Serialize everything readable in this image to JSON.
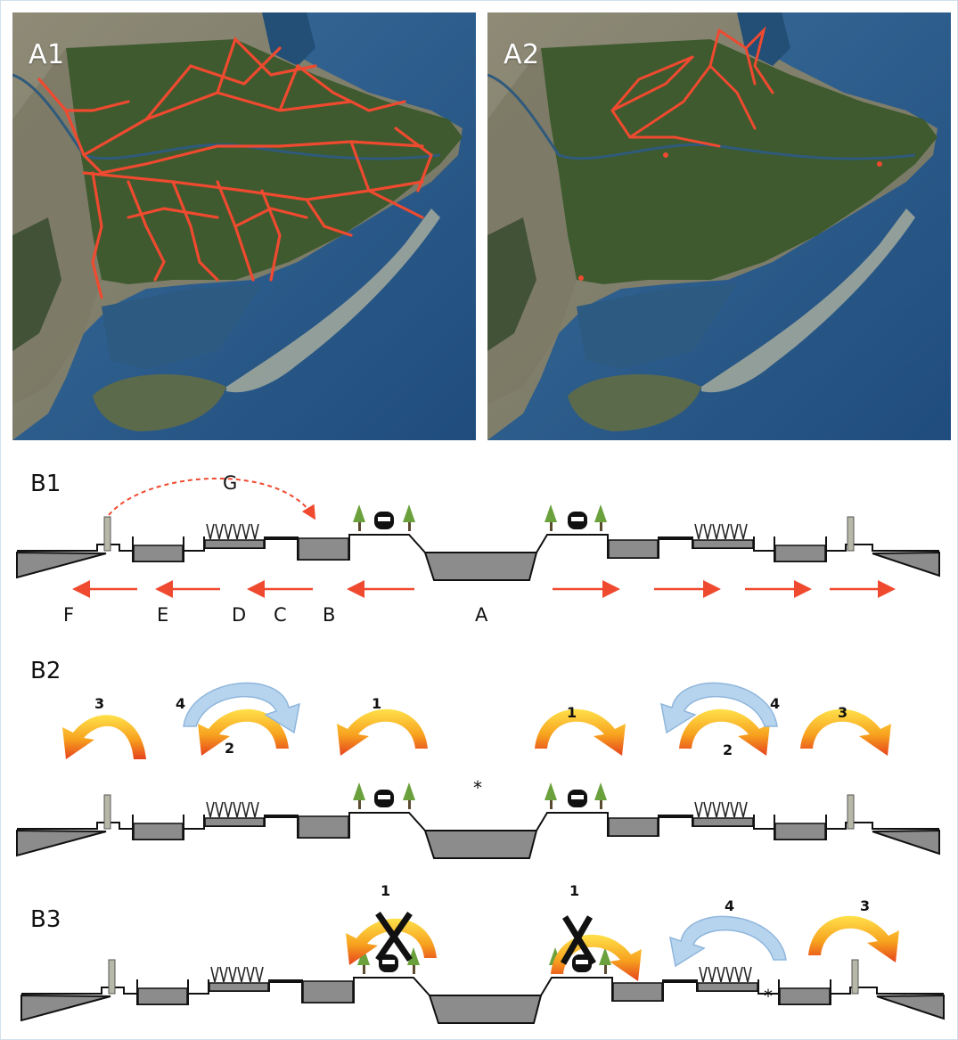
{
  "maps": [
    {
      "label": "A1"
    },
    {
      "label": "A2"
    }
  ],
  "diagrams": [
    {
      "label": "B1",
      "zone_labels": [
        "F",
        "E",
        "D",
        "C",
        "B",
        "A",
        "G"
      ]
    },
    {
      "label": "B2",
      "numbers": [
        "3",
        "4",
        "2",
        "1",
        "1",
        "4",
        "2",
        "3"
      ],
      "marker": "*"
    },
    {
      "label": "B3",
      "numbers": [
        "1",
        "1",
        "4",
        "3"
      ],
      "marker": "*"
    }
  ],
  "colors": {
    "arrow_red": "#ef4a30",
    "flow_orange": "#f28a1e",
    "flow_blue": "#b7d4ee",
    "basin_gray": "#8c8c8c",
    "sea": "#2e5d8c",
    "land": "#3e5a2e"
  }
}
